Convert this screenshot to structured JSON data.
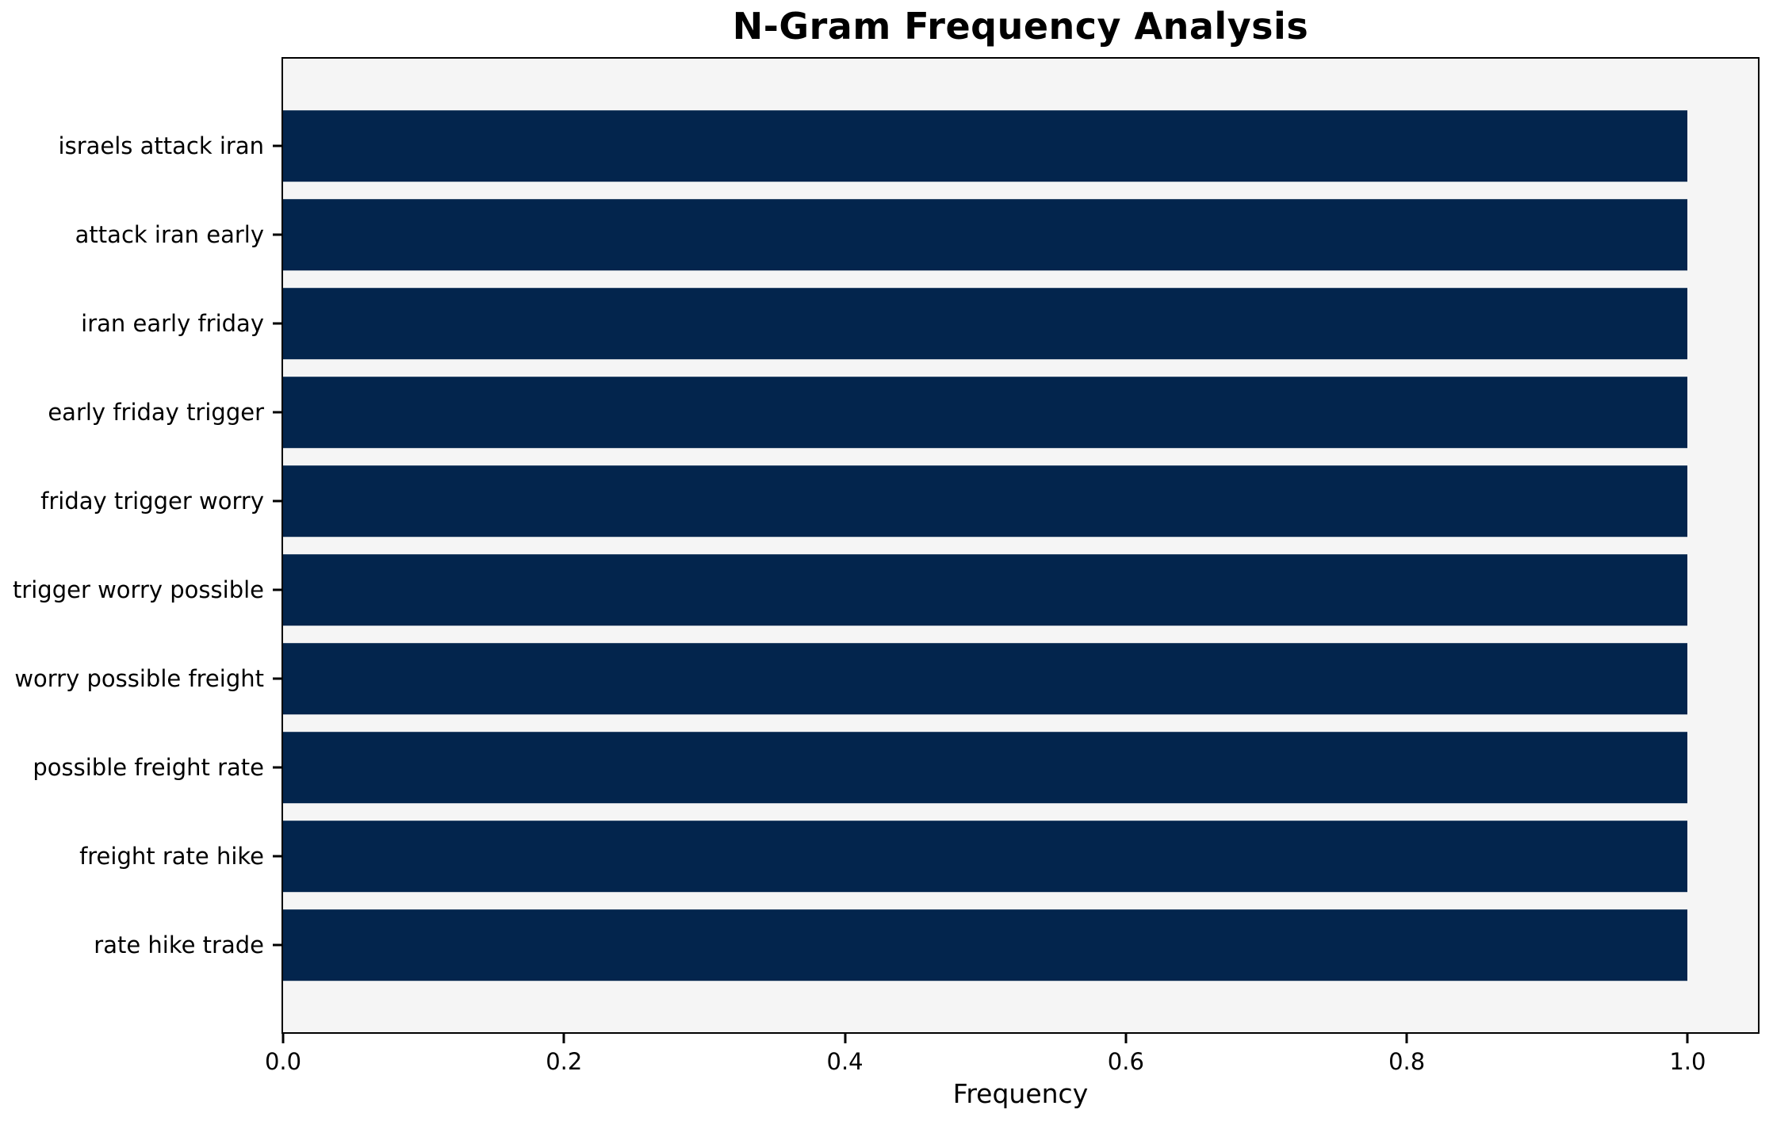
{
  "chart_data": {
    "type": "bar",
    "orientation": "horizontal",
    "title": "N-Gram Frequency Analysis",
    "xlabel": "Frequency",
    "ylabel": "",
    "categories": [
      "israels attack iran",
      "attack iran early",
      "iran early friday",
      "early friday trigger",
      "friday trigger worry",
      "trigger worry possible",
      "worry possible freight",
      "possible freight rate",
      "freight rate hike",
      "rate hike trade"
    ],
    "values": [
      1.0,
      1.0,
      1.0,
      1.0,
      1.0,
      1.0,
      1.0,
      1.0,
      1.0,
      1.0
    ],
    "xlim": [
      0,
      1.05
    ],
    "xticks": [
      {
        "value": 0.0,
        "label": "0.0"
      },
      {
        "value": 0.2,
        "label": "0.2"
      },
      {
        "value": 0.4,
        "label": "0.4"
      },
      {
        "value": 0.6,
        "label": "0.6"
      },
      {
        "value": 0.8,
        "label": "0.8"
      },
      {
        "value": 1.0,
        "label": "1.0"
      }
    ],
    "grid": false,
    "legend": null,
    "colors": {
      "bar": "#03254d",
      "plot_background": "#f5f5f5",
      "figure_background": "#ffffff",
      "axis": "#000000",
      "text": "#000000"
    }
  }
}
